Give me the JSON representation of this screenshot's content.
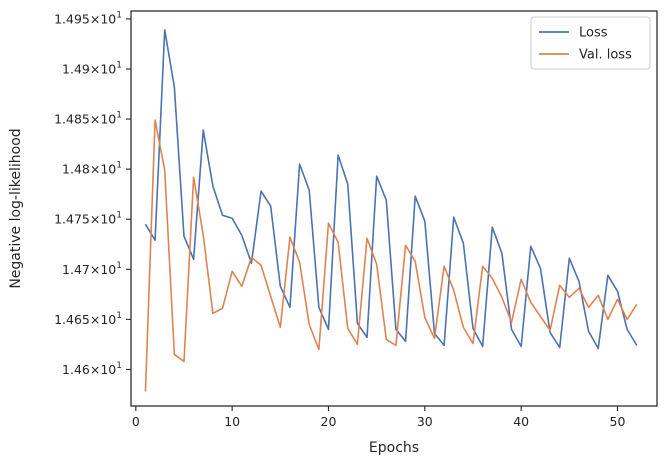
{
  "chart_data": {
    "type": "line",
    "title": "",
    "xlabel": "Epochs",
    "ylabel": "Negative log-likelihood",
    "xlim": [
      -0.5,
      54.1
    ],
    "ylim": [
      14.5635,
      14.9579
    ],
    "x_ticks": [
      0,
      10,
      20,
      30,
      40,
      50
    ],
    "x_tick_labels": [
      "0",
      "10",
      "20",
      "30",
      "40",
      "50"
    ],
    "y_ticks": [
      14.6,
      14.65,
      14.7,
      14.75,
      14.8,
      14.85,
      14.9,
      14.95
    ],
    "y_tick_mantissas": [
      "1.46",
      "1.465",
      "1.47",
      "1.475",
      "1.48",
      "1.485",
      "1.49",
      "1.495"
    ],
    "y_tick_multiplier": "×10",
    "y_tick_exponent": "1",
    "grid": false,
    "legend_position": "top-right",
    "x": [
      1,
      2,
      3,
      4,
      5,
      6,
      7,
      8,
      9,
      10,
      11,
      12,
      13,
      14,
      15,
      16,
      17,
      18,
      19,
      20,
      21,
      22,
      23,
      24,
      25,
      26,
      27,
      28,
      29,
      30,
      31,
      32,
      33,
      34,
      35,
      36,
      37,
      38,
      39,
      40,
      41,
      42,
      43,
      44,
      45,
      46,
      47,
      48,
      49,
      50,
      51,
      52
    ],
    "series": [
      {
        "name": "Loss",
        "color": "#4c72b0",
        "values": [
          14.745,
          14.729,
          14.939,
          14.882,
          14.733,
          14.71,
          14.839,
          14.783,
          14.754,
          14.751,
          14.734,
          14.706,
          14.778,
          14.763,
          14.683,
          14.662,
          14.805,
          14.779,
          14.662,
          14.64,
          14.814,
          14.785,
          14.646,
          14.632,
          14.793,
          14.769,
          14.64,
          14.628,
          14.773,
          14.748,
          14.636,
          14.624,
          14.752,
          14.726,
          14.641,
          14.623,
          14.742,
          14.716,
          14.64,
          14.623,
          14.723,
          14.701,
          14.637,
          14.622,
          14.711,
          14.688,
          14.638,
          14.621,
          14.694,
          14.678,
          14.64,
          14.624
        ]
      },
      {
        "name": "Val. loss",
        "color": "#dd8452",
        "values": [
          14.578,
          14.849,
          14.799,
          14.615,
          14.608,
          14.792,
          14.734,
          14.656,
          14.661,
          14.698,
          14.683,
          14.712,
          14.704,
          14.673,
          14.642,
          14.732,
          14.707,
          14.645,
          14.62,
          14.746,
          14.727,
          14.641,
          14.625,
          14.731,
          14.705,
          14.63,
          14.624,
          14.724,
          14.708,
          14.652,
          14.631,
          14.703,
          14.679,
          14.642,
          14.626,
          14.703,
          14.691,
          14.672,
          14.647,
          14.69,
          14.667,
          14.653,
          14.639,
          14.684,
          14.672,
          14.681,
          14.662,
          14.674,
          14.65,
          14.67,
          14.65,
          14.665
        ]
      }
    ]
  }
}
